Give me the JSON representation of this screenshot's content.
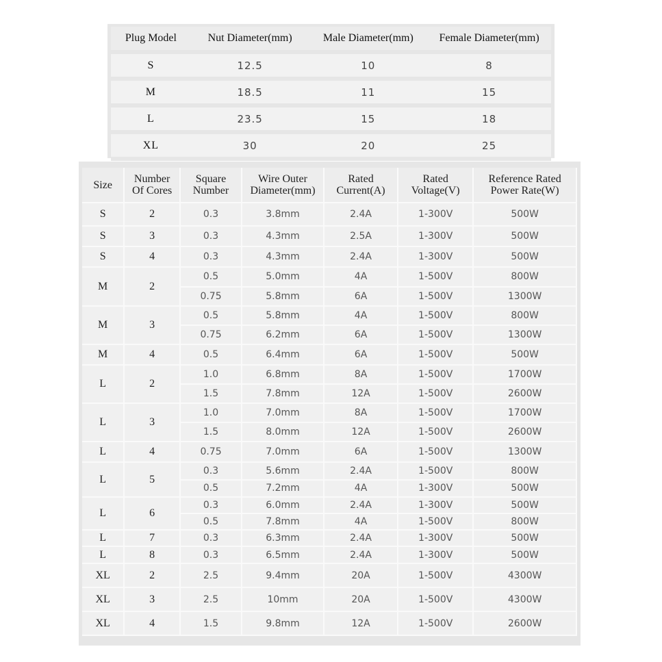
{
  "plug_table": {
    "headers": [
      "Plug Model",
      "Nut Diameter(mm)",
      "Male Diameter(mm)",
      "Female Diameter(mm)"
    ],
    "rows": [
      [
        "S",
        "12.5",
        "10",
        "8"
      ],
      [
        "M",
        "18.5",
        "11",
        "15"
      ],
      [
        "L",
        "23.5",
        "15",
        "18"
      ],
      [
        "XL",
        "30",
        "20",
        "25"
      ]
    ]
  },
  "cable_table": {
    "headers": [
      "Size",
      "Number\nOf Cores",
      "Square\nNumber",
      "Wire Outer\nDiameter(mm)",
      "Rated\nCurrent(A)",
      "Rated\nVoltage(V)",
      "Reference Rated\nPower Rate(W)"
    ],
    "groups": [
      {
        "size": "S",
        "cores": "2",
        "rows": [
          [
            "0.3",
            "3.8mm",
            "2.4A",
            "1-300V",
            "500W"
          ]
        ]
      },
      {
        "size": "S",
        "cores": "3",
        "rows": [
          [
            "0.3",
            "4.3mm",
            "2.5A",
            "1-300V",
            "500W"
          ]
        ]
      },
      {
        "size": "S",
        "cores": "4",
        "rows": [
          [
            "0.3",
            "4.3mm",
            "2.4A",
            "1-300V",
            "500W"
          ]
        ]
      },
      {
        "size": "M",
        "cores": "2",
        "rows": [
          [
            "0.5",
            "5.0mm",
            "4A",
            "1-500V",
            "800W"
          ],
          [
            "0.75",
            "5.8mm",
            "6A",
            "1-500V",
            "1300W"
          ]
        ]
      },
      {
        "size": "M",
        "cores": "3",
        "rows": [
          [
            "0.5",
            "5.8mm",
            "4A",
            "1-500V",
            "800W"
          ],
          [
            "0.75",
            "6.2mm",
            "6A",
            "1-500V",
            "1300W"
          ]
        ]
      },
      {
        "size": "M",
        "cores": "4",
        "rows": [
          [
            "0.5",
            "6.4mm",
            "6A",
            "1-500V",
            "500W"
          ]
        ]
      },
      {
        "size": "L",
        "cores": "2",
        "rows": [
          [
            "1.0",
            "6.8mm",
            "8A",
            "1-500V",
            "1700W"
          ],
          [
            "1.5",
            "7.8mm",
            "12A",
            "1-500V",
            "2600W"
          ]
        ]
      },
      {
        "size": "L",
        "cores": "3",
        "rows": [
          [
            "1.0",
            "7.0mm",
            "8A",
            "1-500V",
            "1700W"
          ],
          [
            "1.5",
            "8.0mm",
            "12A",
            "1-500V",
            "2600W"
          ]
        ]
      },
      {
        "size": "L",
        "cores": "4",
        "rows": [
          [
            "0.75",
            "7.0mm",
            "6A",
            "1-500V",
            "1300W"
          ]
        ]
      },
      {
        "size": "L",
        "cores": "5",
        "rows": [
          [
            "0.3",
            "5.6mm",
            "2.4A",
            "1-500V",
            "800W"
          ],
          [
            "0.5",
            "7.2mm",
            "4A",
            "1-300V",
            "500W"
          ]
        ]
      },
      {
        "size": "L",
        "cores": "6",
        "rows": [
          [
            "0.3",
            "6.0mm",
            "2.4A",
            "1-300V",
            "500W"
          ],
          [
            "0.5",
            "7.8mm",
            "4A",
            "1-500V",
            "800W"
          ]
        ]
      },
      {
        "size": "L",
        "cores": "7",
        "rows": [
          [
            "0.3",
            "6.3mm",
            "2.4A",
            "1-300V",
            "500W"
          ]
        ]
      },
      {
        "size": "L",
        "cores": "8",
        "rows": [
          [
            "0.3",
            "6.5mm",
            "2.4A",
            "1-300V",
            "500W"
          ]
        ]
      },
      {
        "size": "XL",
        "cores": "2",
        "rows": [
          [
            "2.5",
            "9.4mm",
            "20A",
            "1-500V",
            "4300W"
          ]
        ]
      },
      {
        "size": "XL",
        "cores": "3",
        "rows": [
          [
            "2.5",
            "10mm",
            "20A",
            "1-500V",
            "4300W"
          ]
        ]
      },
      {
        "size": "XL",
        "cores": "4",
        "rows": [
          [
            "1.5",
            "9.8mm",
            "12A",
            "1-500V",
            "2600W"
          ]
        ]
      }
    ]
  }
}
